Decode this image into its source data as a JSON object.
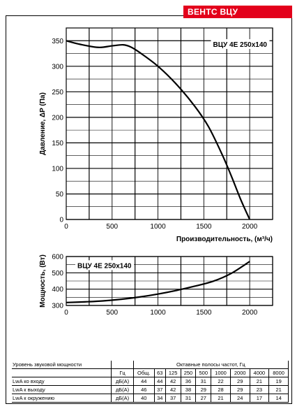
{
  "brand": {
    "label": "ВЕНТС ВЦУ",
    "color": "#e3001b"
  },
  "chart_data": [
    {
      "type": "line",
      "ylabel": "Давление, ΔP (Па)",
      "xlabel": "Производительность, (м³/ч)",
      "annotation": "ВЦУ 4Е 250х140",
      "xlim": [
        0,
        2250
      ],
      "ylim": [
        0,
        375
      ],
      "xticks": [
        0,
        500,
        1000,
        1500,
        2000
      ],
      "yticks": [
        0,
        50,
        100,
        150,
        200,
        250,
        300,
        350
      ],
      "grid": true,
      "series": [
        {
          "x": [
            0,
            150,
            350,
            500,
            620,
            700,
            800,
            1000,
            1200,
            1400,
            1550,
            1700,
            1800,
            1900,
            2000
          ],
          "y": [
            350,
            343,
            337,
            340,
            342,
            338,
            327,
            300,
            265,
            222,
            182,
            127,
            85,
            40,
            0
          ]
        }
      ]
    },
    {
      "type": "line",
      "ylabel": "Мощность, (Вт)",
      "annotation": "ВЦУ 4Е 250х140",
      "xlim": [
        0,
        2250
      ],
      "ylim": [
        300,
        600
      ],
      "xticks": [
        0,
        500,
        1000,
        1500,
        2000
      ],
      "yticks": [
        300,
        400,
        500,
        600
      ],
      "grid": true,
      "series": [
        {
          "x": [
            0,
            200,
            400,
            600,
            800,
            1000,
            1200,
            1400,
            1600,
            1800,
            2000
          ],
          "y": [
            318,
            322,
            328,
            338,
            352,
            370,
            392,
            418,
            448,
            497,
            570
          ]
        }
      ]
    }
  ],
  "sound_table": {
    "title": "Уровень звуковой мощности",
    "band_title": "Октавные полосы частот, Гц",
    "units_header": "Гц",
    "columns": [
      "Общ.",
      "63",
      "125",
      "250",
      "500",
      "1000",
      "2000",
      "4000",
      "8000"
    ],
    "rows": [
      {
        "label": "LwA ко входу",
        "unit": "дБ(А)",
        "values": [
          "44",
          "44",
          "42",
          "36",
          "31",
          "22",
          "29",
          "21",
          "19"
        ]
      },
      {
        "label": "LwA к выходу",
        "unit": "дБ(А)",
        "values": [
          "46",
          "37",
          "42",
          "38",
          "29",
          "28",
          "29",
          "23",
          "21"
        ]
      },
      {
        "label": "LwA к окружению",
        "unit": "дБ(А)",
        "values": [
          "40",
          "34",
          "37",
          "31",
          "27",
          "21",
          "24",
          "17",
          "14"
        ]
      }
    ]
  }
}
